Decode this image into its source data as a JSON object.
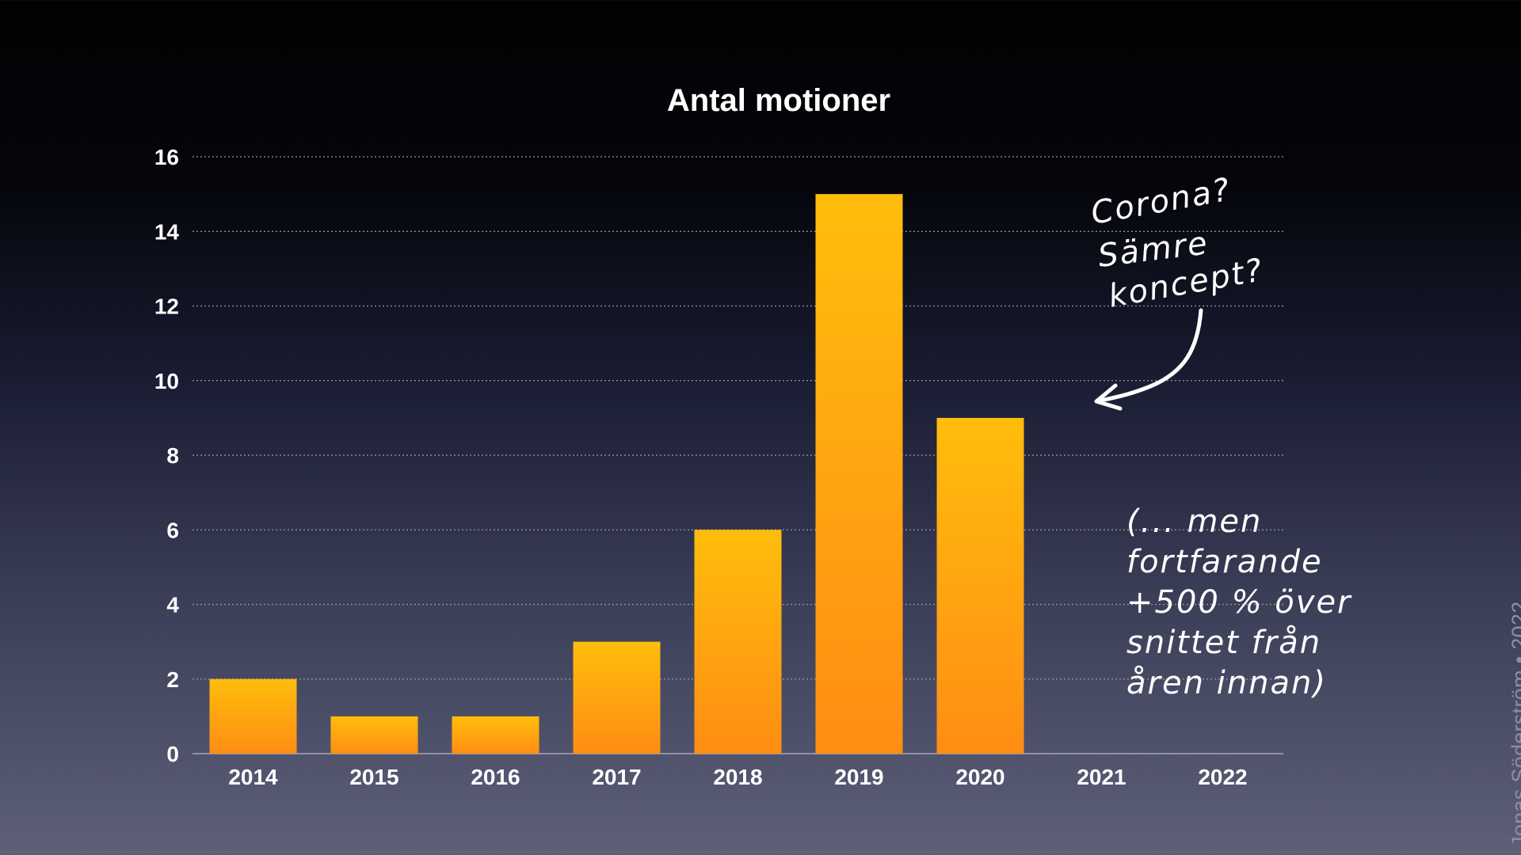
{
  "colors": {
    "bar_top": "#ffbd0c",
    "bar_bottom": "#ff8d14",
    "text": "#ffffff",
    "grid": "#9a9aa8",
    "credit": "#8d8ea0"
  },
  "chart_data": {
    "type": "bar",
    "title": "Antal motioner",
    "xlabel": "",
    "ylabel": "",
    "categories": [
      "2014",
      "2015",
      "2016",
      "2017",
      "2018",
      "2019",
      "2020",
      "2021",
      "2022"
    ],
    "values": [
      2,
      1,
      1,
      3,
      6,
      15,
      9,
      null,
      null
    ],
    "ylim": [
      0,
      16
    ],
    "yticks": [
      0,
      2,
      4,
      6,
      8,
      10,
      12,
      14,
      16
    ],
    "grid": true,
    "legend": "none"
  },
  "annotations": {
    "question": [
      "Corona?",
      "Sämre",
      "koncept?"
    ],
    "note": [
      "(... men",
      "fortfarande",
      "+500 % över",
      "snittet från",
      "åren innan)"
    ]
  },
  "credit": "Jonas Söderström • 2022"
}
